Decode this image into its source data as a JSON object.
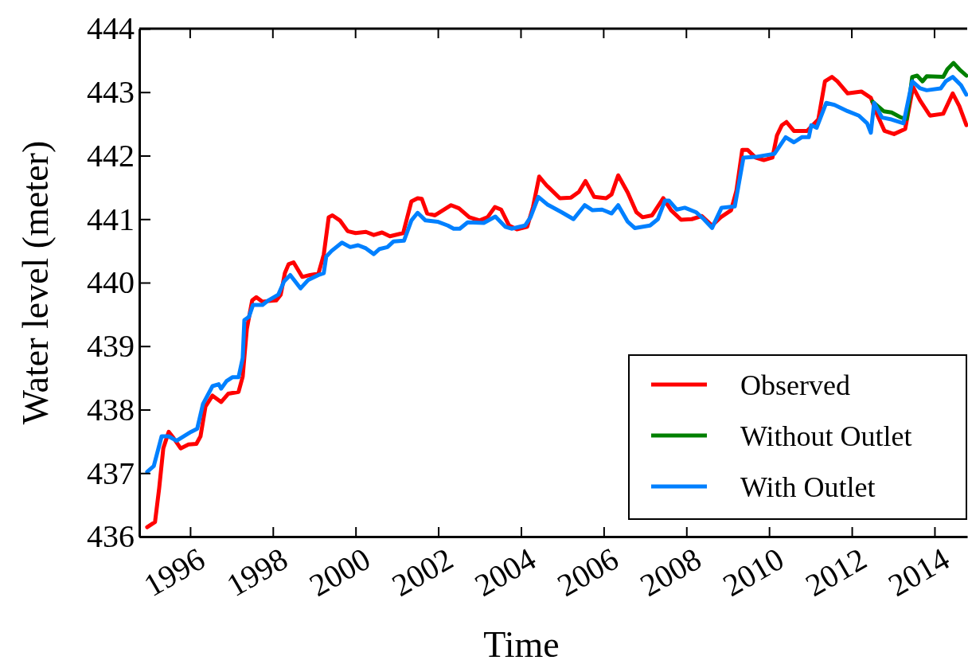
{
  "chart_data": {
    "type": "line",
    "xlabel": "Time",
    "ylabel": "Water level (meter)",
    "xlim": [
      1994.77,
      2014.79
    ],
    "ylim": [
      436,
      444
    ],
    "xticks": [
      1996,
      1998,
      2000,
      2002,
      2004,
      2006,
      2008,
      2010,
      2012,
      2014
    ],
    "yticks": [
      436,
      437,
      438,
      439,
      440,
      441,
      442,
      443,
      444
    ],
    "legend": "bottom right",
    "grid": false,
    "line_style": "solid",
    "marker": "none",
    "series": [
      {
        "name": "Observed",
        "color": "#ff0000",
        "x": [
          1994.96,
          1995.15,
          1995.25,
          1995.35,
          1995.48,
          1995.6,
          1995.77,
          1995.96,
          1996.15,
          1996.25,
          1996.37,
          1996.54,
          1996.75,
          1996.92,
          1997.17,
          1997.27,
          1997.37,
          1997.5,
          1997.6,
          1997.75,
          1997.89,
          1998.08,
          1998.19,
          1998.29,
          1998.38,
          1998.5,
          1998.71,
          1998.9,
          1999.1,
          1999.23,
          1999.35,
          1999.44,
          1999.62,
          1999.81,
          2000.0,
          2000.25,
          2000.44,
          2000.64,
          2000.83,
          2001.15,
          2001.35,
          2001.5,
          2001.6,
          2001.73,
          2001.92,
          2002.31,
          2002.5,
          2002.75,
          2003.0,
          2003.19,
          2003.37,
          2003.52,
          2003.71,
          2003.9,
          2004.15,
          2004.29,
          2004.44,
          2004.62,
          2004.67,
          2004.94,
          2005.21,
          2005.4,
          2005.56,
          2005.77,
          2006.06,
          2006.19,
          2006.35,
          2006.58,
          2006.79,
          2006.94,
          2007.17,
          2007.44,
          2007.63,
          2007.87,
          2008.13,
          2008.37,
          2008.62,
          2008.83,
          2009.08,
          2009.21,
          2009.35,
          2009.48,
          2009.67,
          2009.87,
          2010.08,
          2010.19,
          2010.31,
          2010.42,
          2010.6,
          2010.92,
          2011.19,
          2011.35,
          2011.52,
          2011.65,
          2011.9,
          2012.23,
          2012.46,
          2012.63,
          2012.79,
          2013.02,
          2013.29,
          2013.48,
          2013.65,
          2013.89,
          2014.21,
          2014.44,
          2014.6,
          2014.77
        ],
        "values": [
          436.15,
          436.23,
          436.76,
          437.39,
          437.65,
          437.55,
          437.39,
          437.45,
          437.46,
          437.58,
          438.05,
          438.22,
          438.12,
          438.25,
          438.28,
          438.52,
          439.27,
          439.72,
          439.77,
          439.7,
          439.71,
          439.72,
          439.81,
          440.15,
          440.29,
          440.32,
          440.09,
          440.12,
          440.14,
          440.44,
          441.03,
          441.06,
          440.98,
          440.81,
          440.78,
          440.8,
          440.75,
          440.79,
          440.73,
          440.78,
          441.28,
          441.33,
          441.32,
          441.09,
          441.06,
          441.22,
          441.17,
          441.03,
          440.98,
          441.03,
          441.19,
          441.15,
          440.9,
          440.84,
          440.88,
          441.19,
          441.67,
          441.53,
          441.5,
          441.33,
          441.34,
          441.43,
          441.6,
          441.35,
          441.33,
          441.39,
          441.69,
          441.42,
          441.11,
          441.03,
          441.06,
          441.33,
          441.14,
          440.99,
          441.0,
          441.05,
          440.9,
          441.03,
          441.14,
          441.45,
          442.09,
          442.09,
          441.97,
          441.93,
          441.97,
          442.32,
          442.48,
          442.53,
          442.39,
          442.39,
          442.57,
          443.17,
          443.24,
          443.17,
          442.98,
          443.01,
          442.91,
          442.62,
          442.39,
          442.34,
          442.42,
          443.08,
          442.87,
          442.63,
          442.66,
          442.98,
          442.78,
          442.48
        ]
      },
      {
        "name": "Without Outlet",
        "color": "#008000",
        "x": [
          2012.5,
          2012.77,
          2012.96,
          2013.19,
          2013.33,
          2013.46,
          2013.58,
          2013.71,
          2013.81,
          2014.21,
          2014.31,
          2014.46,
          2014.6,
          2014.77
        ],
        "values": [
          442.85,
          442.7,
          442.68,
          442.6,
          442.58,
          443.24,
          443.26,
          443.17,
          443.25,
          443.24,
          443.36,
          443.46,
          443.36,
          443.26
        ]
      },
      {
        "name": "With Outlet",
        "color": "#0080ff",
        "x": [
          1994.96,
          1995.12,
          1995.31,
          1995.48,
          1995.67,
          1996.02,
          1996.17,
          1996.31,
          1996.54,
          1996.69,
          1996.75,
          1996.88,
          1997.02,
          1997.17,
          1997.27,
          1997.31,
          1997.42,
          1997.52,
          1997.75,
          1997.89,
          1998.13,
          1998.27,
          1998.42,
          1998.67,
          1998.85,
          1999.1,
          1999.23,
          1999.29,
          1999.42,
          1999.67,
          1999.87,
          2000.06,
          2000.25,
          2000.44,
          2000.58,
          2000.77,
          2000.92,
          2001.17,
          2001.35,
          2001.5,
          2001.69,
          2001.98,
          2002.23,
          2002.37,
          2002.52,
          2002.71,
          2003.1,
          2003.38,
          2003.62,
          2003.77,
          2004.1,
          2004.23,
          2004.42,
          2004.64,
          2004.67,
          2004.98,
          2005.27,
          2005.54,
          2005.73,
          2005.96,
          2006.19,
          2006.35,
          2006.58,
          2006.75,
          2007.12,
          2007.31,
          2007.48,
          2007.58,
          2007.77,
          2007.96,
          2008.23,
          2008.42,
          2008.62,
          2008.85,
          2009.17,
          2009.38,
          2009.67,
          2010.13,
          2010.4,
          2010.6,
          2010.79,
          2010.96,
          2011.02,
          2011.15,
          2011.38,
          2011.58,
          2011.9,
          2012.17,
          2012.37,
          2012.46,
          2012.54,
          2012.73,
          2012.96,
          2013.25,
          2013.46,
          2013.65,
          2013.81,
          2014.15,
          2014.27,
          2014.44,
          2014.64,
          2014.77
        ],
        "values": [
          437.02,
          437.11,
          437.58,
          437.58,
          437.51,
          437.65,
          437.7,
          438.09,
          438.37,
          438.4,
          438.33,
          438.45,
          438.51,
          438.51,
          438.81,
          439.41,
          439.46,
          439.65,
          439.65,
          439.72,
          439.81,
          440.02,
          440.12,
          439.91,
          440.04,
          440.12,
          440.15,
          440.41,
          440.5,
          440.63,
          440.56,
          440.59,
          440.54,
          440.45,
          440.53,
          440.56,
          440.65,
          440.66,
          440.98,
          441.1,
          440.98,
          440.96,
          440.9,
          440.85,
          440.85,
          440.95,
          440.94,
          441.04,
          440.88,
          440.85,
          440.9,
          441.03,
          441.35,
          441.23,
          441.22,
          441.11,
          441.0,
          441.22,
          441.14,
          441.15,
          441.09,
          441.22,
          440.96,
          440.86,
          440.9,
          441.0,
          441.29,
          441.29,
          441.15,
          441.18,
          441.11,
          441.0,
          440.86,
          441.18,
          441.2,
          441.97,
          441.98,
          442.03,
          442.29,
          442.21,
          442.29,
          442.29,
          442.48,
          442.44,
          442.83,
          442.8,
          442.7,
          442.63,
          442.51,
          442.36,
          442.83,
          442.6,
          442.57,
          442.51,
          443.17,
          443.06,
          443.03,
          443.06,
          443.17,
          443.24,
          443.11,
          442.96
        ]
      }
    ]
  }
}
